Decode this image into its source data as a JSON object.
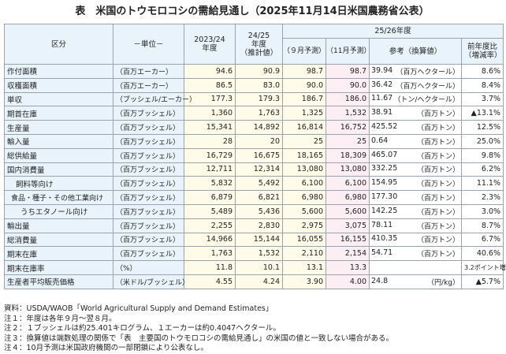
{
  "title": "表　米国のトウモロコシの需給見通し（2025年11月14日米国農務省公表）",
  "headers": {
    "category": "区分",
    "unit": "－単位－",
    "y2023": "2023/24\n年度",
    "y2024a": "24/25",
    "y2024b": "年度",
    "y2024c": "（推計値）",
    "y2025": "25/26年度",
    "sep": "（９月予測）",
    "nov": "（11月予測）",
    "ref": "参考（換算値）",
    "chg_a": "前年度比",
    "chg_b": "（増減率）"
  },
  "rows": [
    {
      "label": "作付面積",
      "indent": 0,
      "unit": "（百万エーカー）",
      "v2023": "94.6",
      "v2024": "90.9",
      "sep": "98.7",
      "nov": "98.7",
      "ref": "39.94",
      "ref_unit": "（百万ヘクタール）",
      "chg": "8.6%"
    },
    {
      "label": "収穫面積",
      "indent": 0,
      "unit": "（百万エーカー）",
      "v2023": "86.5",
      "v2024": "83.0",
      "sep": "90.0",
      "nov": "90.0",
      "ref": "36.42",
      "ref_unit": "（百万ヘクタール）",
      "chg": "8.4%"
    },
    {
      "label": "単収",
      "indent": 0,
      "unit": "（ブッシェル/エーカー）",
      "v2023": "177.3",
      "v2024": "179.3",
      "sep": "186.7",
      "nov": "186.0",
      "ref": "11.67",
      "ref_unit": "（トン/ヘクタール）",
      "chg": "3.7%"
    },
    {
      "label": "期首在庫",
      "indent": 0,
      "unit": "（百万ブッシェル）",
      "v2023": "1,360",
      "v2024": "1,763",
      "sep": "1,325",
      "nov": "1,532",
      "ref": "38.91",
      "ref_unit": "（百万トン）",
      "chg": "▲13.1%"
    },
    {
      "label": "生産量",
      "indent": 0,
      "unit": "（百万ブッシェル）",
      "v2023": "15,341",
      "v2024": "14,892",
      "sep": "16,814",
      "nov": "16,752",
      "ref": "425.52",
      "ref_unit": "（百万トン）",
      "chg": "12.5%"
    },
    {
      "label": "輸入量",
      "indent": 0,
      "unit": "（百万ブッシェル）",
      "v2023": "28",
      "v2024": "20",
      "sep": "25",
      "nov": "25",
      "ref": "0.64",
      "ref_unit": "（百万トン）",
      "chg": "25.0%"
    },
    {
      "label": "総供給量",
      "indent": 0,
      "unit": "（百万ブッシェル）",
      "v2023": "16,729",
      "v2024": "16,675",
      "sep": "18,165",
      "nov": "18,309",
      "ref": "465.07",
      "ref_unit": "（百万トン）",
      "chg": "9.8%"
    },
    {
      "label": "国内消費量",
      "indent": 0,
      "unit": "（百万ブッシェル）",
      "v2023": "12,711",
      "v2024": "12,314",
      "sep": "13,080",
      "nov": "13,080",
      "ref": "332.25",
      "ref_unit": "（百万トン）",
      "chg": "6.2%"
    },
    {
      "label": "飼料等向け",
      "indent": 1,
      "unit": "（百万ブッシェル）",
      "v2023": "5,832",
      "v2024": "5,492",
      "sep": "6,100",
      "nov": "6,100",
      "ref": "154.95",
      "ref_unit": "（百万トン）",
      "chg": "11.1%"
    },
    {
      "label": "食品・種子・その他工業向け",
      "indent": 2,
      "unit": "（百万ブッシェル）",
      "v2023": "6,879",
      "v2024": "6,821",
      "sep": "6,980",
      "nov": "6,980",
      "ref": "177.30",
      "ref_unit": "（百万トン）",
      "chg": "2.3%"
    },
    {
      "label": "うちエタノール向け",
      "indent": 3,
      "unit": "（百万ブッシェル）",
      "v2023": "5,489",
      "v2024": "5,436",
      "sep": "5,600",
      "nov": "5,600",
      "ref": "142.25",
      "ref_unit": "（百万トン）",
      "chg": "3.0%"
    },
    {
      "label": "輸出量",
      "indent": 0,
      "unit": "（百万ブッシェル）",
      "v2023": "2,255",
      "v2024": "2,830",
      "sep": "2,975",
      "nov": "3,075",
      "ref": "78.11",
      "ref_unit": "（百万トン）",
      "chg": "8.7%"
    },
    {
      "label": "総消費量",
      "indent": 0,
      "unit": "（百万ブッシェル）",
      "v2023": "14,966",
      "v2024": "15,144",
      "sep": "16,055",
      "nov": "16,155",
      "ref": "410.35",
      "ref_unit": "（百万トン）",
      "chg": "6.7%"
    },
    {
      "label": "期末在庫",
      "indent": 0,
      "unit": "（百万ブッシェル）",
      "v2023": "1,763",
      "v2024": "1,532",
      "sep": "2,110",
      "nov": "2,154",
      "ref": "54.71",
      "ref_unit": "（百万トン）",
      "chg": "40.6%"
    },
    {
      "label": "期末在庫率",
      "indent": 0,
      "unit": "（%）",
      "v2023": "11.8",
      "v2024": "10.1",
      "sep": "13.1",
      "nov": "13.3",
      "ref": "",
      "ref_unit": "",
      "chg": "3.2ポイント増"
    },
    {
      "label": "生産者平均販売価格",
      "indent": 0,
      "unit": "（米ドル/ブッシェル）",
      "v2023": "4.55",
      "v2024": "4.24",
      "sep": "3.90",
      "nov": "4.00",
      "ref": "24.8",
      "ref_unit": "（円/kg）",
      "chg": "▲5.7%"
    }
  ],
  "notes": [
    "資料：USDA/WAOB「World Agricultural Supply and Demand Estimates」",
    "注１：年度は各年９月～翌８月。",
    "注２：１ブッシェルは約25.401キログラム、１エーカーは約0.4047ヘクタール。",
    "注３：換算値は端数処理の関係で「表　主要国のトウモロコシの需給見通し」の米国の値と一致しない場合がある。",
    "注４：10月予測は米国政府機関の一部閉鎖により公表なし。"
  ]
}
